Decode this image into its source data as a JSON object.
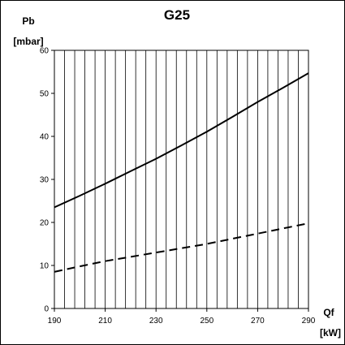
{
  "chart_data": {
    "type": "line",
    "title": "G25",
    "ylabel": [
      "Pb",
      "[mbar]"
    ],
    "xlabel": [
      "Qf",
      "[kW]"
    ],
    "xlim": [
      190,
      290
    ],
    "ylim": [
      0,
      60
    ],
    "x_tick_labels": [
      "190",
      "210",
      "230",
      "250",
      "270",
      "290"
    ],
    "y_tick_labels": [
      "0",
      "10",
      "20",
      "30",
      "40",
      "50",
      "60"
    ],
    "x_tick_values": [
      190,
      210,
      230,
      250,
      270,
      290
    ],
    "y_tick_values": [
      0,
      10,
      20,
      30,
      40,
      50,
      60
    ],
    "vertical_grid_step": 4,
    "grid": "vertical",
    "series": [
      {
        "style": "solid",
        "color": "#000000",
        "x": [
          190,
          200,
          210,
          220,
          230,
          240,
          250,
          260,
          270,
          280,
          290
        ],
        "y": [
          23.5,
          26.2,
          29.0,
          31.9,
          34.8,
          37.9,
          41.1,
          44.5,
          48.0,
          51.3,
          54.7
        ]
      },
      {
        "style": "dashed",
        "color": "#000000",
        "x": [
          190,
          200,
          210,
          220,
          230,
          240,
          250,
          260,
          270,
          280,
          290
        ],
        "y": [
          8.5,
          9.8,
          11.0,
          12.0,
          13.0,
          14.0,
          15.0,
          16.2,
          17.4,
          18.6,
          19.8
        ]
      }
    ]
  }
}
